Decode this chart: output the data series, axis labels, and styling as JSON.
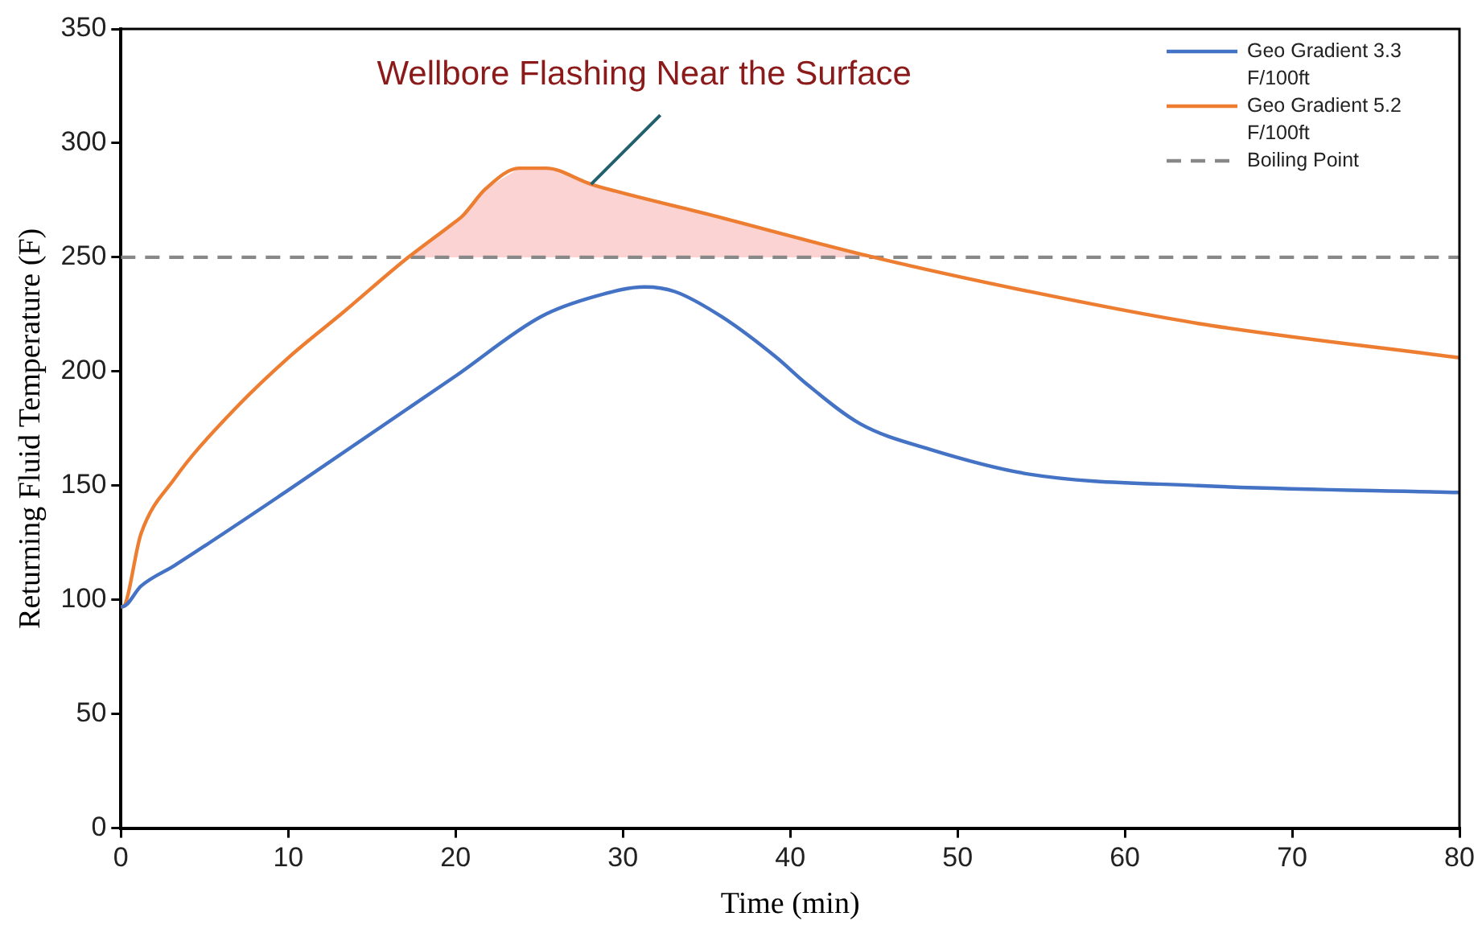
{
  "chart_data": {
    "type": "line",
    "xlabel": "Time (min)",
    "ylabel": "Returning Fluid Temperature (F)",
    "xlim": [
      0,
      80
    ],
    "xticks": [
      0,
      10,
      20,
      30,
      40,
      50,
      60,
      70,
      80
    ],
    "ylim": [
      0,
      350
    ],
    "yticks": [
      0,
      50,
      100,
      150,
      200,
      250,
      300,
      350
    ],
    "legend": "top right",
    "marker": "none",
    "annotations": [
      {
        "text": "Wellbore Flashing Near the Surface",
        "x": 28.1,
        "y": 282
      }
    ],
    "ref_lines": [
      {
        "axis": "y",
        "value": 250,
        "label": "Boiling Point",
        "color": "#888888",
        "line_style": "dashed"
      }
    ],
    "series": [
      {
        "type": "area",
        "color": "#fbd3d3",
        "x": [
          17.2,
          19.7,
          20.4,
          21.8,
          23.8,
          25.4,
          28.1,
          35,
          45
        ],
        "values": [
          250,
          264,
          268,
          280,
          289,
          289,
          282,
          269,
          250
        ]
      },
      {
        "name": "Geo Gradient 3.3 F/100ft",
        "color": "#4472c4",
        "x": [
          0,
          0.1,
          1.2,
          3.2,
          10,
          20,
          25.1,
          28.4,
          31.3,
          33.1,
          35.9,
          39.2,
          40.9,
          44.2,
          48.3,
          54.3,
          64.4,
          80
        ],
        "values": [
          97,
          97,
          106,
          115,
          148,
          198,
          224,
          233,
          237,
          235,
          224,
          206,
          195,
          177,
          166,
          155,
          150,
          147
        ]
      },
      {
        "name": "Geo Gradient 5.2 F/100ft",
        "color": "#ed7d31",
        "x": [
          0,
          0.1,
          1.2,
          3.2,
          6.6,
          10,
          13.3,
          17,
          19.7,
          20.4,
          21.8,
          23.8,
          25.4,
          28.1,
          35,
          45,
          54.3,
          64.4,
          80
        ],
        "values": [
          97,
          97,
          129,
          153,
          182,
          206,
          226,
          249,
          264,
          268,
          280,
          289,
          289,
          282,
          269,
          250,
          235,
          221,
          206
        ]
      }
    ]
  }
}
